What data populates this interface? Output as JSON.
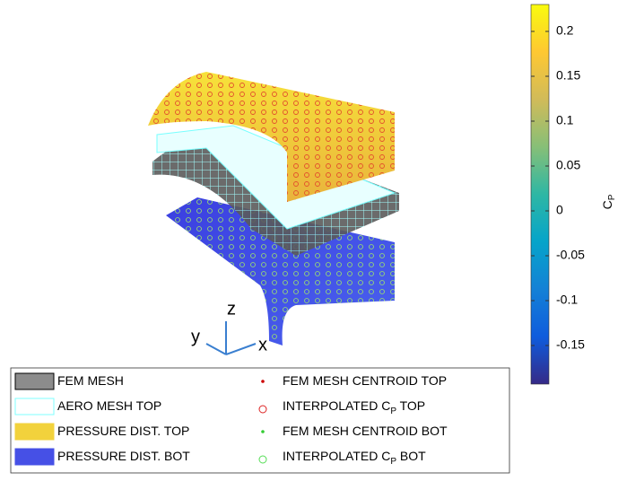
{
  "chart_data": {
    "type": "surface3d",
    "axis_labels": {
      "x": "x",
      "y": "y",
      "z": "z"
    },
    "colorbar": {
      "label": "C",
      "label_sub": "P",
      "clim": [
        -0.193,
        0.23
      ],
      "ticks": [
        -0.15,
        -0.1,
        -0.05,
        0,
        0.05,
        0.1,
        0.15,
        0.2
      ],
      "colormap": [
        "#352a87",
        "#0f5cdd",
        "#1481d6",
        "#06a4ca",
        "#2eb7a4",
        "#87bf77",
        "#d1bb59",
        "#fec832",
        "#f9fb0e"
      ]
    },
    "legend": [
      {
        "name": "FEM MESH",
        "kind": "patch",
        "color": "#8c8c8c",
        "edge": "#000000"
      },
      {
        "name": "AERO MESH TOP",
        "kind": "patch",
        "color": "#ffffff",
        "edge": "#7fffff"
      },
      {
        "name": "PRESSURE DIST. TOP",
        "kind": "patch",
        "color": "#f2d23c",
        "edge": "#f2d23c"
      },
      {
        "name": "PRESSURE DIST. BOT",
        "kind": "patch",
        "color": "#4650e6",
        "edge": "#4650e6"
      },
      {
        "name": "FEM MESH CENTROID TOP",
        "kind": "dot",
        "color": "#cc0000"
      },
      {
        "name": "INTERPOLATED C",
        "name_sub": "P",
        "name_end": " TOP",
        "kind": "circle",
        "color": "#dd2222"
      },
      {
        "name": "FEM MESH CENTROID BOT",
        "kind": "dot",
        "color": "#33cc33"
      },
      {
        "name": "INTERPOLATED C",
        "name_sub": "P",
        "name_end": " BOT",
        "kind": "circle",
        "color": "#55dd55"
      }
    ]
  }
}
